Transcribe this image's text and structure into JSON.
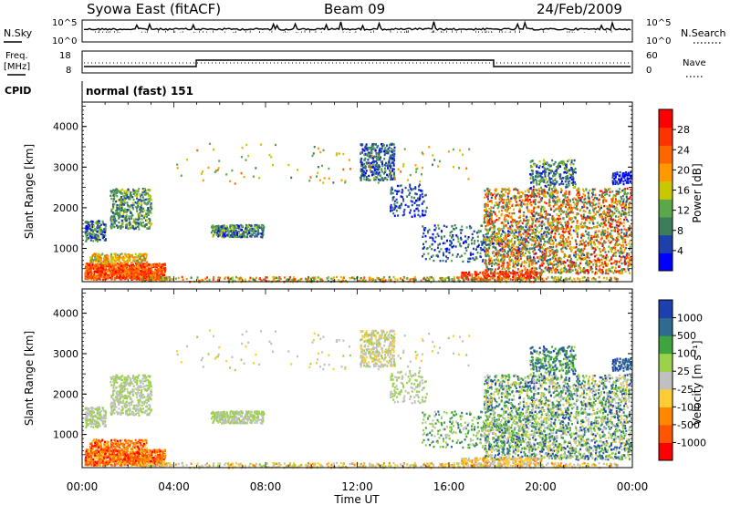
{
  "header": {
    "station": "Syowa East (fitACF)",
    "beam": "Beam 09",
    "date": "24/Feb/2009"
  },
  "noise_panel": {
    "left_label": "N.Sky",
    "right_label": "N.Search",
    "left_ticks": [
      "10^5",
      "10^0"
    ],
    "right_ticks": [
      "10^5",
      "10^0"
    ]
  },
  "freq_panel": {
    "left_label_1": "Freq.",
    "left_label_2": "[MHz]",
    "right_label": "Nave",
    "left_ticks": [
      "18",
      "8"
    ],
    "right_ticks": [
      "60",
      "0"
    ]
  },
  "cpid": {
    "label": "CPID",
    "mode": "normal (fast) 151"
  },
  "colors": {
    "power_scale": [
      "#0000ff",
      "#1e3fae",
      "#3b7f5a",
      "#5aa84a",
      "#c8c800",
      "#ff9900",
      "#ff6600",
      "#ff3300",
      "#ff0000"
    ],
    "velocity_scale": [
      "#ff0000",
      "#ff5500",
      "#ff8800",
      "#ffcc33",
      "#c0c0c0",
      "#9bd24a",
      "#3ea53e",
      "#2e6b8e",
      "#1d3fb0"
    ]
  },
  "chart_data": [
    {
      "type": "heatmap",
      "title": "",
      "xlabel": "Time UT",
      "ylabel": "Slant Range [km]",
      "x_ticks": [
        "00:00",
        "04:00",
        "08:00",
        "12:00",
        "16:00",
        "20:00",
        "00:00"
      ],
      "y_ticks": [
        1000,
        2000,
        3000,
        4000
      ],
      "xlim": [
        0,
        24
      ],
      "ylim": [
        180,
        4600
      ],
      "colorbar": {
        "label": "Power [dB]",
        "ticks": [
          "28",
          "24",
          "20",
          "16",
          "12",
          "8",
          "4"
        ]
      },
      "grid": false
    },
    {
      "type": "heatmap",
      "title": "",
      "xlabel": "Time UT",
      "ylabel": "Slant Range [km]",
      "x_ticks": [
        "00:00",
        "04:00",
        "08:00",
        "12:00",
        "16:00",
        "20:00",
        "00:00"
      ],
      "y_ticks": [
        1000,
        2000,
        3000,
        4000
      ],
      "xlim": [
        0,
        24
      ],
      "ylim": [
        180,
        4600
      ],
      "colorbar": {
        "label": "Velocity [m s⁻¹]",
        "ticks": [
          "1000",
          "500",
          "100",
          "25",
          "-25",
          "-100",
          "-500",
          "-1000"
        ]
      },
      "grid": false
    }
  ]
}
